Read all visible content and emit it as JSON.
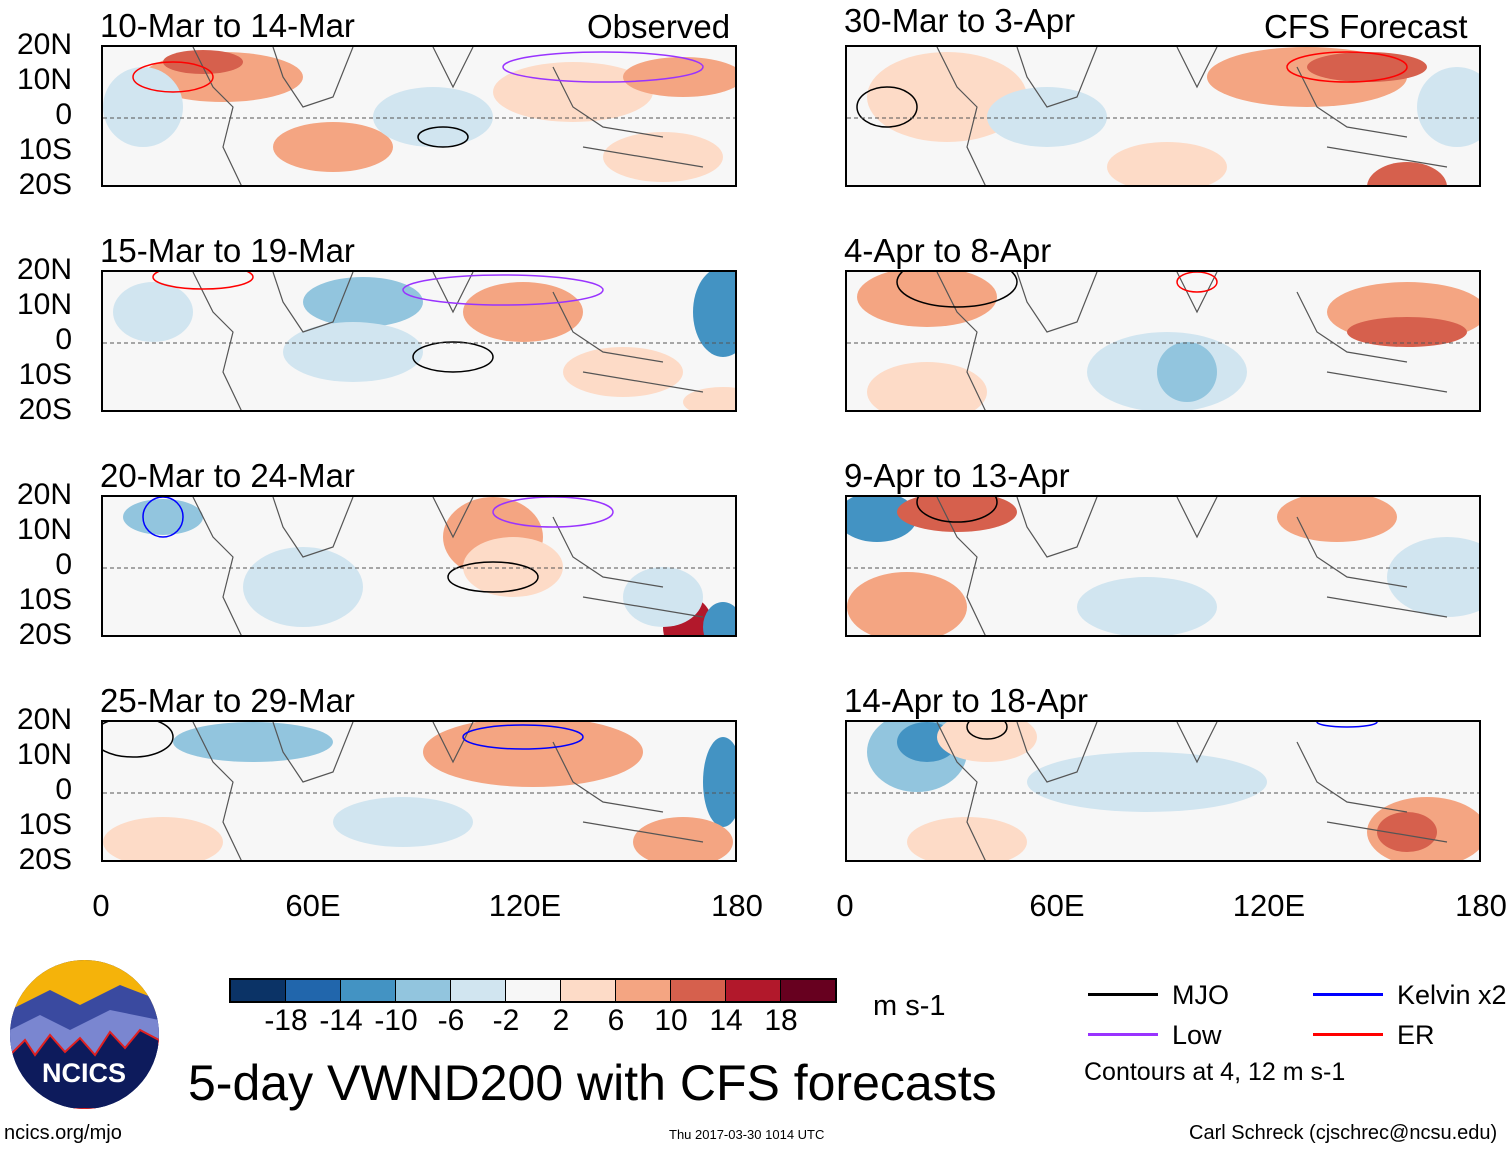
{
  "title": "5-day VWND200 with CFS forecasts",
  "left_header": "Observed",
  "right_header": "CFS Forecast",
  "left_panels": [
    "10-Mar to 14-Mar",
    "15-Mar to 19-Mar",
    "20-Mar to 24-Mar",
    "25-Mar to 29-Mar"
  ],
  "right_panels": [
    "30-Mar to 3-Apr",
    "4-Apr to 8-Apr",
    "9-Apr to 13-Apr",
    "14-Apr to 18-Apr"
  ],
  "lat_labels": [
    "20N",
    "10N",
    "0",
    "10S",
    "20S"
  ],
  "lon_labels": [
    "0",
    "60E",
    "120E",
    "180"
  ],
  "colorbar": {
    "colors": [
      "#0b3366",
      "#2166ac",
      "#4393c3",
      "#92c5de",
      "#d1e5f0",
      "#f7f7f7",
      "#fddbc7",
      "#f4a582",
      "#d6604d",
      "#b2182b",
      "#67001f"
    ],
    "labels": [
      "-18",
      "-14",
      "-10",
      "-6",
      "-2",
      "2",
      "6",
      "10",
      "14",
      "18"
    ],
    "units": "m s-1"
  },
  "legend": {
    "items": [
      {
        "label": "MJO",
        "color": "#000000"
      },
      {
        "label": "Kelvin x2",
        "color": "#0000ff"
      },
      {
        "label": "Low",
        "color": "#9933ff"
      },
      {
        "label": "ER",
        "color": "#ff0000"
      }
    ],
    "note": "Contours at 4, 12 m s-1"
  },
  "logo": {
    "text": "NCICS"
  },
  "footer": {
    "url": "ncics.org/mjo",
    "timestamp": "Thu 2017-03-30 1014 UTC",
    "author": "Carl Schreck (cjschrec@ncsu.edu)"
  }
}
